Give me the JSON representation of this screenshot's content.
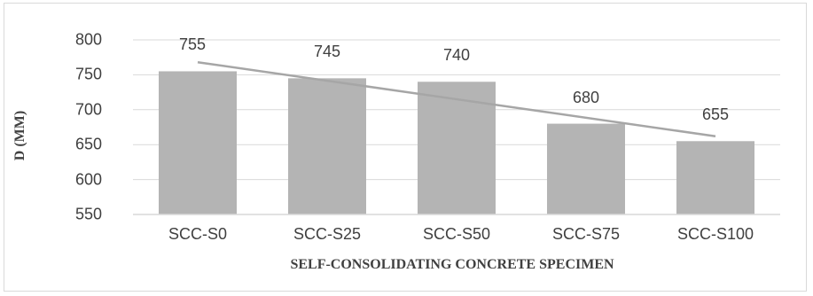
{
  "chart_data": {
    "type": "bar",
    "categories": [
      "SCC-S0",
      "SCC-S25",
      "SCC-S50",
      "SCC-S75",
      "SCC-S100"
    ],
    "values": [
      755,
      745,
      740,
      680,
      655
    ],
    "data_labels": [
      "755",
      "745",
      "740",
      "680",
      "655"
    ],
    "xlabel": "SELF-CONSOLIDATING CONCRETE SPECIMEN",
    "ylabel": "D (MM)",
    "ylim": [
      550,
      800
    ],
    "yticks": [
      "550",
      "600",
      "650",
      "700",
      "750",
      "800"
    ],
    "trendline": {
      "type": "linear",
      "start": 768,
      "end": 662
    },
    "grid": true,
    "legend": "none",
    "bar_color": "#b4b4b4",
    "trend_color": "#a6a6a6",
    "grid_color": "#d9d9d9"
  }
}
